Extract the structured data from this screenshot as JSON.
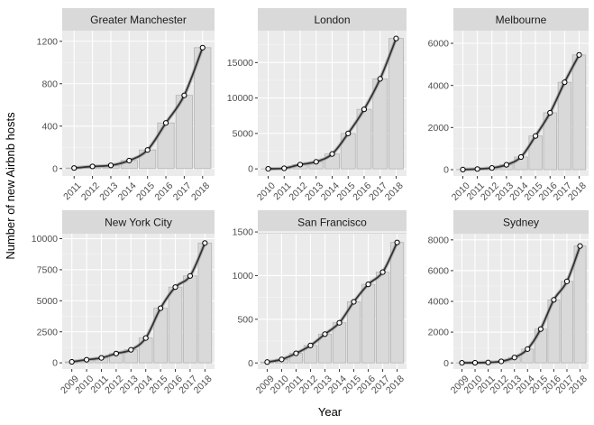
{
  "chart_data": {
    "type": "bar",
    "xlabel": "Year",
    "ylabel": "Number of new Airbnb hosts",
    "grid": true,
    "legend": "none",
    "colors": {
      "bar_fill": "#d9d9d9",
      "bar_stroke": "#b3b3b3",
      "panel_bg": "#ebebeb",
      "grid_major": "#ffffff",
      "grid_minor": "#f5f5f5",
      "strip_bg": "#d9d9d9",
      "smooth_line": "#333333",
      "point_fill": "#ffffff",
      "point_stroke": "#000000"
    },
    "panels": [
      {
        "title": "Greater Manchester",
        "categories": [
          "2011",
          "2012",
          "2013",
          "2014",
          "2015",
          "2016",
          "2017",
          "2018"
        ],
        "values": [
          5,
          20,
          30,
          75,
          175,
          430,
          690,
          1140
        ],
        "ylim": [
          -70,
          1300
        ],
        "yticks": [
          0,
          400,
          800,
          1200
        ],
        "ytick_labels": [
          "0",
          "400",
          "800",
          "1200"
        ]
      },
      {
        "title": "London",
        "categories": [
          "2010",
          "2011",
          "2012",
          "2013",
          "2014",
          "2015",
          "2016",
          "2017",
          "2018"
        ],
        "values": [
          5,
          80,
          600,
          1000,
          2100,
          5000,
          8400,
          12700,
          18400
        ],
        "ylim": [
          -1000,
          19500
        ],
        "yticks": [
          0,
          5000,
          10000,
          15000
        ],
        "ytick_labels": [
          "0",
          "5000",
          "10000",
          "15000"
        ]
      },
      {
        "title": "Melbourne",
        "categories": [
          "2010",
          "2011",
          "2012",
          "2013",
          "2014",
          "2015",
          "2016",
          "2017",
          "2018"
        ],
        "values": [
          5,
          30,
          80,
          230,
          600,
          1600,
          2700,
          4150,
          5450
        ],
        "ylim": [
          -300,
          6600
        ],
        "yticks": [
          0,
          2000,
          4000,
          6000
        ],
        "ytick_labels": [
          "0",
          "2000",
          "4000",
          "6000"
        ]
      },
      {
        "title": "New York City",
        "categories": [
          "2009",
          "2010",
          "2011",
          "2012",
          "2013",
          "2014",
          "2015",
          "2016",
          "2017",
          "2018"
        ],
        "values": [
          80,
          250,
          400,
          750,
          1050,
          2000,
          4400,
          6100,
          7000,
          9650
        ],
        "ylim": [
          -500,
          10400
        ],
        "yticks": [
          0,
          2500,
          5000,
          7500,
          10000
        ],
        "ytick_labels": [
          "0",
          "2500",
          "5000",
          "7500",
          "10000"
        ]
      },
      {
        "title": "San Francisco",
        "categories": [
          "2009",
          "2010",
          "2011",
          "2012",
          "2013",
          "2014",
          "2015",
          "2016",
          "2017",
          "2018"
        ],
        "values": [
          10,
          40,
          110,
          200,
          330,
          460,
          700,
          900,
          1040,
          1380
        ],
        "ylim": [
          -70,
          1480
        ],
        "yticks": [
          0,
          500,
          1000,
          1500
        ],
        "ytick_labels": [
          "0",
          "500",
          "1000",
          "1500"
        ]
      },
      {
        "title": "Sydney",
        "categories": [
          "2009",
          "2010",
          "2011",
          "2012",
          "2013",
          "2014",
          "2015",
          "2016",
          "2017",
          "2018"
        ],
        "values": [
          5,
          10,
          30,
          100,
          350,
          900,
          2200,
          4100,
          5300,
          7600
        ],
        "ylim": [
          -400,
          8400
        ],
        "yticks": [
          0,
          2000,
          4000,
          6000,
          8000
        ],
        "ytick_labels": [
          "0",
          "2000",
          "4000",
          "6000",
          "8000"
        ]
      }
    ]
  }
}
